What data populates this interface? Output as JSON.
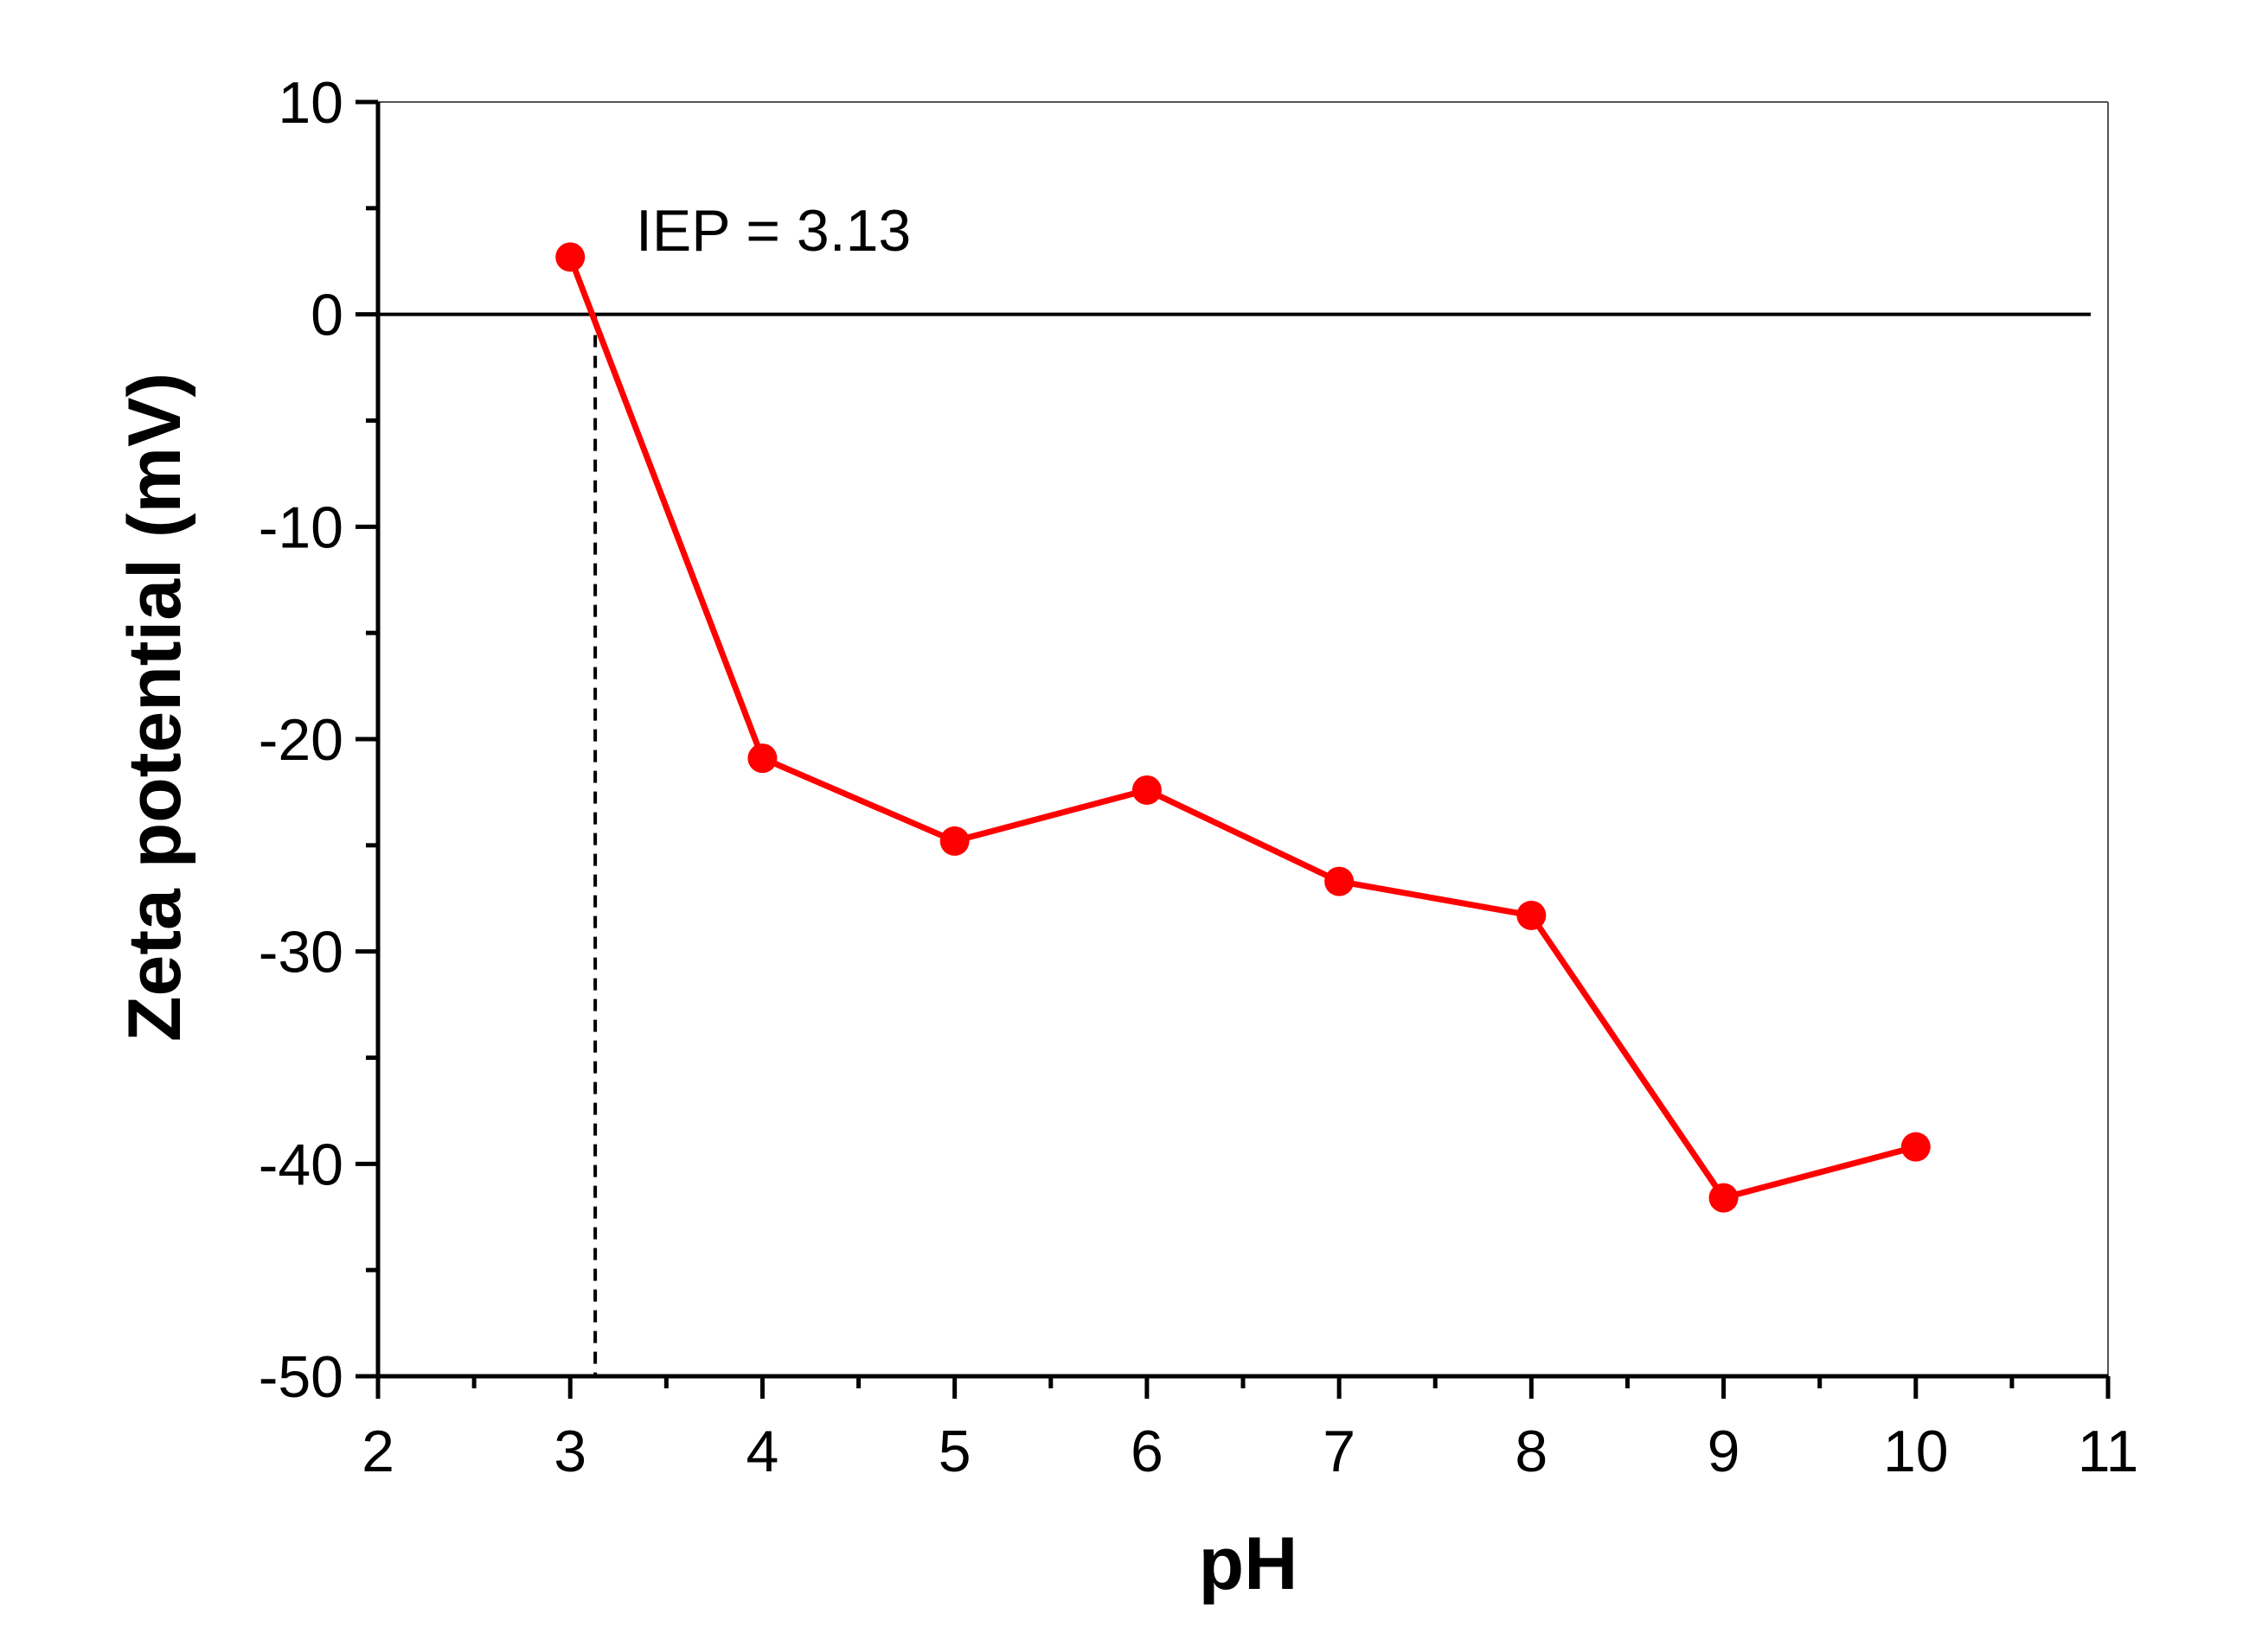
{
  "chart_data": {
    "type": "line",
    "title": "",
    "xlabel": "pH",
    "ylabel": "Zeta potential (mV)",
    "xlim": [
      2,
      11
    ],
    "ylim": [
      -50,
      10
    ],
    "x_ticks": [
      2,
      3,
      4,
      5,
      6,
      7,
      8,
      9,
      10,
      11
    ],
    "y_ticks": [
      10,
      0,
      -10,
      -20,
      -30,
      -40,
      -50
    ],
    "x_tick_labels": [
      "2",
      "3",
      "4",
      "5",
      "6",
      "7",
      "8",
      "9",
      "10",
      "11"
    ],
    "y_tick_labels": [
      "10",
      "0",
      "-10",
      "-20",
      "-30",
      "-40",
      "-50"
    ],
    "grid": false,
    "series": [
      {
        "color": "#ff0000",
        "marker": "circle",
        "x": [
          3,
          4,
          5,
          6,
          7,
          8,
          9,
          10
        ],
        "y": [
          2.7,
          -20.9,
          -24.8,
          -22.4,
          -26.7,
          -28.3,
          -41.6,
          -39.2
        ]
      }
    ],
    "reference_lines": {
      "horizontal_zero": 0,
      "iep_x": 3.13
    },
    "annotation": {
      "text": "IEP = 3.13"
    }
  }
}
